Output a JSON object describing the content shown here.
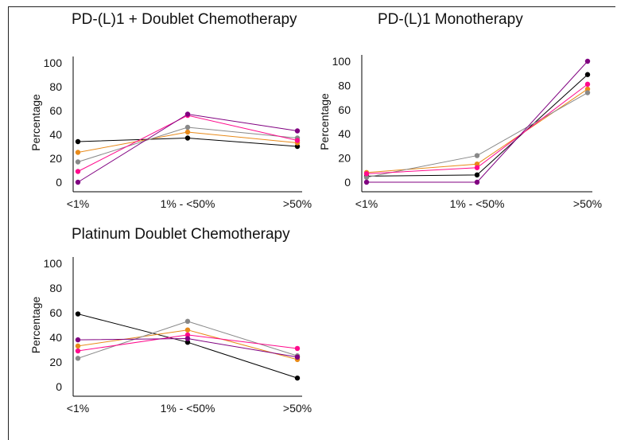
{
  "chart_data": [
    {
      "type": "line",
      "title": "PD-(L)1 + Doublet Chemotherapy",
      "ylabel": "Percentage",
      "categories": [
        "<1%",
        "1% - <50%",
        ">50%"
      ],
      "yticks": [
        0,
        20,
        40,
        60,
        80,
        100
      ],
      "ylim": [
        0,
        100
      ],
      "grid": false,
      "series": [
        {
          "color": "#000000",
          "values": [
            34,
            37,
            30
          ]
        },
        {
          "color": "#e88a1a",
          "values": [
            25,
            42,
            33
          ]
        },
        {
          "color": "#888888",
          "values": [
            17,
            46,
            37
          ]
        },
        {
          "color": "#ff0a8c",
          "values": [
            9,
            56,
            35
          ]
        },
        {
          "color": "#800080",
          "values": [
            0,
            57,
            43
          ]
        }
      ]
    },
    {
      "type": "line",
      "title": "PD-(L)1 Monotherapy",
      "ylabel": "Percentage",
      "categories": [
        "<1%",
        "1% - <50%",
        ">50%"
      ],
      "yticks": [
        0,
        20,
        40,
        60,
        80,
        100
      ],
      "ylim": [
        0,
        100
      ],
      "grid": false,
      "series": [
        {
          "color": "#000000",
          "values": [
            5,
            6,
            89
          ]
        },
        {
          "color": "#e88a1a",
          "values": [
            8,
            15,
            77
          ]
        },
        {
          "color": "#888888",
          "values": [
            4,
            22,
            74
          ]
        },
        {
          "color": "#ff0a8c",
          "values": [
            7,
            12,
            81
          ]
        },
        {
          "color": "#800080",
          "values": [
            0,
            0,
            100
          ]
        }
      ]
    },
    {
      "type": "line",
      "title": "Platinum Doublet Chemotherapy",
      "ylabel": "Percentage",
      "categories": [
        "<1%",
        "1% - <50%",
        ">50%"
      ],
      "yticks": [
        0,
        20,
        40,
        60,
        80,
        100
      ],
      "ylim": [
        0,
        100
      ],
      "grid": false,
      "series": [
        {
          "color": "#000000",
          "values": [
            59,
            36,
            7
          ]
        },
        {
          "color": "#e88a1a",
          "values": [
            33,
            46,
            22
          ]
        },
        {
          "color": "#888888",
          "values": [
            23,
            53,
            25
          ]
        },
        {
          "color": "#ff0a8c",
          "values": [
            29,
            42,
            31
          ]
        },
        {
          "color": "#800080",
          "values": [
            38,
            39,
            24
          ]
        }
      ]
    }
  ]
}
